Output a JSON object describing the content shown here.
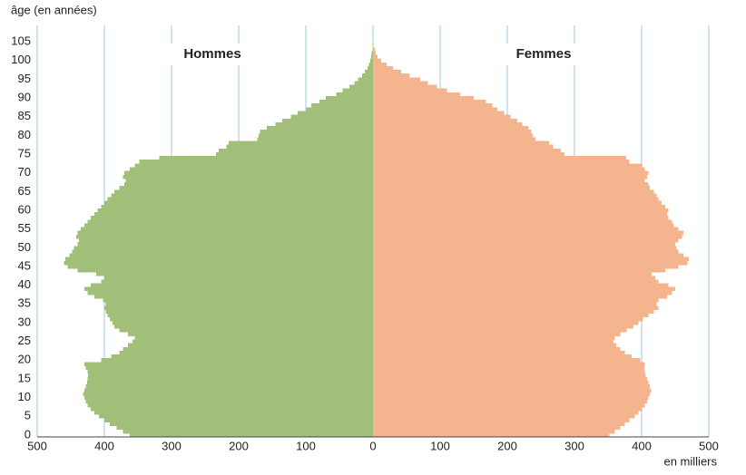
{
  "chart_data": {
    "type": "pyramid",
    "title": "âge (en années)",
    "xlabel": "en milliers",
    "categories": [
      0,
      1,
      2,
      3,
      4,
      5,
      6,
      7,
      8,
      9,
      10,
      11,
      12,
      13,
      14,
      15,
      16,
      17,
      18,
      19,
      20,
      21,
      22,
      23,
      24,
      25,
      26,
      27,
      28,
      29,
      30,
      31,
      32,
      33,
      34,
      35,
      36,
      37,
      38,
      39,
      40,
      41,
      42,
      43,
      44,
      45,
      46,
      47,
      48,
      49,
      50,
      51,
      52,
      53,
      54,
      55,
      56,
      57,
      58,
      59,
      60,
      61,
      62,
      63,
      64,
      65,
      66,
      67,
      68,
      69,
      70,
      71,
      72,
      73,
      74,
      75,
      76,
      77,
      78,
      79,
      80,
      81,
      82,
      83,
      84,
      85,
      86,
      87,
      88,
      89,
      90,
      91,
      92,
      93,
      94,
      95,
      96,
      97,
      98,
      99,
      100,
      101,
      102,
      103,
      104,
      105
    ],
    "yticks": [
      0,
      5,
      10,
      15,
      20,
      25,
      30,
      35,
      40,
      45,
      50,
      55,
      60,
      65,
      70,
      75,
      80,
      85,
      90,
      95,
      100,
      105
    ],
    "xlim": [
      0,
      500
    ],
    "xticks": [
      0,
      100,
      200,
      300,
      400,
      500
    ],
    "grid": true,
    "series": [
      {
        "name": "Hommes",
        "color": "#a2bf7a",
        "side": "left",
        "values": [
          362,
          372,
          382,
          392,
          400,
          408,
          415,
          420,
          425,
          428,
          430,
          432,
          430,
          428,
          426,
          425,
          424,
          425,
          428,
          430,
          405,
          390,
          378,
          372,
          365,
          358,
          355,
          365,
          378,
          385,
          388,
          392,
          395,
          398,
          400,
          398,
          402,
          415,
          425,
          430,
          420,
          405,
          400,
          412,
          440,
          455,
          460,
          458,
          452,
          448,
          445,
          440,
          438,
          442,
          440,
          435,
          430,
          425,
          420,
          415,
          410,
          405,
          400,
          395,
          390,
          385,
          378,
          370,
          368,
          372,
          370,
          362,
          355,
          348,
          318,
          234,
          230,
          218,
          215,
          172,
          170,
          168,
          158,
          145,
          135,
          122,
          112,
          100,
          92,
          80,
          70,
          55,
          45,
          35,
          28,
          22,
          16,
          12,
          8,
          6,
          4,
          3,
          2,
          1,
          1,
          0
        ]
      },
      {
        "name": "Femmes",
        "color": "#f4b48d",
        "side": "right",
        "values": [
          352,
          360,
          368,
          375,
          382,
          390,
          395,
          400,
          405,
          408,
          410,
          412,
          414,
          412,
          410,
          408,
          406,
          405,
          404,
          405,
          398,
          385,
          375,
          368,
          362,
          358,
          360,
          368,
          378,
          388,
          395,
          402,
          410,
          418,
          425,
          422,
          425,
          438,
          445,
          450,
          440,
          425,
          420,
          415,
          435,
          455,
          468,
          470,
          462,
          455,
          452,
          450,
          455,
          460,
          462,
          455,
          448,
          445,
          440,
          438,
          440,
          435,
          430,
          425,
          422,
          418,
          412,
          410,
          405,
          408,
          410,
          405,
          400,
          382,
          377,
          285,
          280,
          268,
          262,
          242,
          238,
          236,
          232,
          222,
          215,
          205,
          195,
          185,
          178,
          168,
          150,
          130,
          110,
          95,
          82,
          70,
          55,
          42,
          30,
          20,
          12,
          7,
          4,
          3,
          1,
          1
        ]
      }
    ]
  }
}
